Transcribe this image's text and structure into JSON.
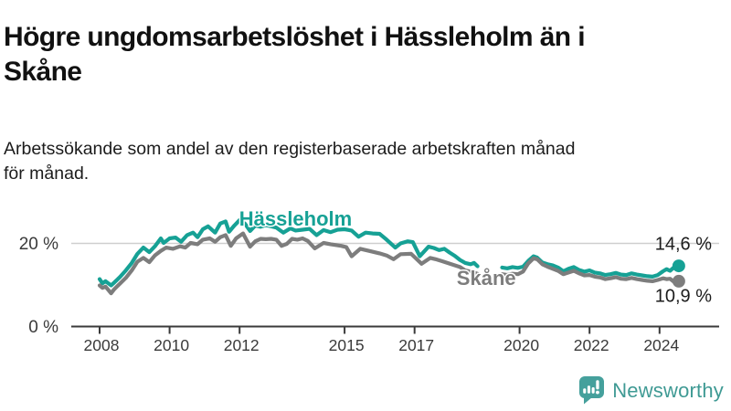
{
  "header": {
    "title": "Högre ungdomsarbetslöshet i Hässleholm än i\nSkåne",
    "subtitle": "Arbetssökande som andel av den registerbaserade arbetskraften månad\nför månad."
  },
  "footer": {
    "brand": "Newsworthy",
    "brand_color": "#3f9a94",
    "icon": "newsworthy-bubble-chart-icon",
    "icon_color": "#45a09c"
  },
  "chart_data": {
    "type": "line",
    "x_unit": "year",
    "y_unit": "percent",
    "xlim": [
      2007.6,
      2025.3
    ],
    "ylim": [
      0,
      30
    ],
    "grid": "horizontal line at 20 % only",
    "x_ticks": [
      {
        "year": 2008,
        "label": "2008"
      },
      {
        "year": 2010,
        "label": "2010"
      },
      {
        "year": 2012,
        "label": "2012"
      },
      {
        "year": 2015,
        "label": "2015"
      },
      {
        "year": 2017,
        "label": "2017"
      },
      {
        "year": 2020,
        "label": "2020"
      },
      {
        "year": 2022,
        "label": "2022"
      },
      {
        "year": 2024,
        "label": "2024"
      }
    ],
    "y_ticks": [
      {
        "value": 0,
        "label": "0 %"
      },
      {
        "value": 20,
        "label": "20 %"
      }
    ],
    "colors": {
      "axis": "#3a3a3a",
      "grid": "#cfcfcf",
      "annotation": "#1c1c1c"
    },
    "series": [
      {
        "name": "Hässleholm",
        "color": "#16a195",
        "label_at": [
          2013.6,
          24.3
        ],
        "end_value": 14.6,
        "end_label": "14,6 %",
        "end_label_dy": -17.5,
        "segments": [
          [
            [
              2008.0,
              11.4
            ],
            [
              2008.08,
              10.4
            ],
            [
              2008.17,
              10.9
            ],
            [
              2008.33,
              9.9
            ],
            [
              2008.42,
              10.6
            ],
            [
              2008.58,
              11.9
            ],
            [
              2008.75,
              13.5
            ],
            [
              2008.92,
              15.3
            ],
            [
              2009.08,
              17.5
            ],
            [
              2009.25,
              19.0
            ],
            [
              2009.42,
              17.9
            ],
            [
              2009.58,
              19.3
            ],
            [
              2009.75,
              21.2
            ],
            [
              2009.83,
              20.1
            ],
            [
              2010.0,
              21.2
            ],
            [
              2010.17,
              21.4
            ],
            [
              2010.33,
              20.4
            ],
            [
              2010.5,
              22.0
            ],
            [
              2010.67,
              22.6
            ],
            [
              2010.8,
              21.5
            ],
            [
              2010.95,
              23.4
            ],
            [
              2011.1,
              24.1
            ],
            [
              2011.3,
              22.6
            ],
            [
              2011.45,
              24.8
            ],
            [
              2011.6,
              25.3
            ],
            [
              2011.7,
              22.8
            ],
            [
              2011.85,
              24.3
            ],
            [
              2012.0,
              25.6
            ],
            [
              2012.15,
              24.8
            ],
            [
              2012.3,
              23.0
            ],
            [
              2012.45,
              24.3
            ],
            [
              2012.6,
              24.0
            ],
            [
              2012.75,
              24.4
            ],
            [
              2012.9,
              24.1
            ],
            [
              2013.05,
              23.8
            ],
            [
              2013.25,
              22.6
            ],
            [
              2013.45,
              23.6
            ],
            [
              2013.6,
              23.1
            ],
            [
              2013.8,
              23.3
            ],
            [
              2014.0,
              23.5
            ],
            [
              2014.2,
              22.0
            ],
            [
              2014.4,
              23.2
            ],
            [
              2014.6,
              22.7
            ],
            [
              2014.8,
              23.3
            ],
            [
              2015.0,
              23.4
            ],
            [
              2015.2,
              23.1
            ],
            [
              2015.4,
              21.6
            ],
            [
              2015.6,
              22.6
            ],
            [
              2015.8,
              22.4
            ],
            [
              2016.0,
              22.3
            ],
            [
              2016.2,
              20.9
            ],
            [
              2016.45,
              19.0
            ],
            [
              2016.6,
              20.0
            ],
            [
              2016.8,
              20.5
            ],
            [
              2016.95,
              20.3
            ],
            [
              2017.15,
              16.9
            ],
            [
              2017.4,
              19.2
            ],
            [
              2017.55,
              18.9
            ],
            [
              2017.7,
              18.4
            ],
            [
              2017.85,
              18.7
            ],
            [
              2018.0,
              17.8
            ],
            [
              2018.15,
              17.0
            ],
            [
              2018.3,
              16.0
            ],
            [
              2018.45,
              15.3
            ],
            [
              2018.6,
              15.0
            ],
            [
              2018.7,
              15.3
            ],
            [
              2018.8,
              14.5
            ]
          ],
          [
            [
              2019.5,
              14.2
            ],
            [
              2019.65,
              14.0
            ],
            [
              2019.8,
              14.3
            ],
            [
              2019.95,
              14.1
            ],
            [
              2020.1,
              14.4
            ],
            [
              2020.25,
              15.8
            ],
            [
              2020.4,
              16.9
            ],
            [
              2020.5,
              16.6
            ],
            [
              2020.65,
              15.4
            ],
            [
              2020.8,
              15.0
            ],
            [
              2020.95,
              14.7
            ],
            [
              2021.1,
              14.2
            ],
            [
              2021.25,
              13.3
            ],
            [
              2021.4,
              13.9
            ],
            [
              2021.55,
              14.3
            ],
            [
              2021.7,
              13.6
            ],
            [
              2021.85,
              13.2
            ],
            [
              2022.0,
              13.5
            ],
            [
              2022.15,
              13.0
            ],
            [
              2022.3,
              12.8
            ],
            [
              2022.45,
              12.4
            ],
            [
              2022.6,
              12.6
            ],
            [
              2022.75,
              12.9
            ],
            [
              2022.9,
              12.5
            ],
            [
              2023.05,
              12.4
            ],
            [
              2023.2,
              12.8
            ],
            [
              2023.35,
              12.5
            ],
            [
              2023.5,
              12.3
            ],
            [
              2023.65,
              12.1
            ],
            [
              2023.8,
              12.0
            ],
            [
              2023.95,
              12.4
            ],
            [
              2024.1,
              13.3
            ],
            [
              2024.2,
              13.8
            ],
            [
              2024.3,
              13.4
            ],
            [
              2024.42,
              14.3
            ],
            [
              2024.5,
              13.9
            ],
            [
              2024.55,
              14.6
            ]
          ]
        ]
      },
      {
        "name": "Skåne",
        "color": "#7d7d7d",
        "label_at": [
          2019.05,
          10.0
        ],
        "end_value": 10.9,
        "end_label": "10,9 %",
        "end_label_dy": 22.5,
        "segments": [
          [
            [
              2008.0,
              9.9
            ],
            [
              2008.08,
              9.3
            ],
            [
              2008.17,
              9.6
            ],
            [
              2008.33,
              8.0
            ],
            [
              2008.42,
              9.0
            ],
            [
              2008.58,
              10.3
            ],
            [
              2008.75,
              11.7
            ],
            [
              2008.92,
              13.5
            ],
            [
              2009.08,
              15.6
            ],
            [
              2009.25,
              16.5
            ],
            [
              2009.42,
              15.5
            ],
            [
              2009.58,
              17.1
            ],
            [
              2009.75,
              18.2
            ],
            [
              2009.9,
              19.0
            ],
            [
              2010.1,
              18.7
            ],
            [
              2010.3,
              19.3
            ],
            [
              2010.45,
              19.0
            ],
            [
              2010.6,
              20.1
            ],
            [
              2010.8,
              19.8
            ],
            [
              2010.95,
              20.9
            ],
            [
              2011.15,
              21.2
            ],
            [
              2011.3,
              20.4
            ],
            [
              2011.45,
              21.5
            ],
            [
              2011.6,
              22.0
            ],
            [
              2011.75,
              19.4
            ],
            [
              2011.9,
              21.2
            ],
            [
              2012.1,
              22.4
            ],
            [
              2012.3,
              19.2
            ],
            [
              2012.45,
              20.5
            ],
            [
              2012.6,
              21.1
            ],
            [
              2012.75,
              21.0
            ],
            [
              2012.9,
              21.1
            ],
            [
              2013.05,
              20.9
            ],
            [
              2013.2,
              19.4
            ],
            [
              2013.35,
              19.9
            ],
            [
              2013.5,
              21.1
            ],
            [
              2013.65,
              20.9
            ],
            [
              2013.8,
              21.2
            ],
            [
              2013.95,
              20.6
            ],
            [
              2014.15,
              18.8
            ],
            [
              2014.4,
              20.1
            ],
            [
              2014.6,
              19.8
            ],
            [
              2014.9,
              19.4
            ],
            [
              2015.05,
              19.1
            ],
            [
              2015.2,
              16.9
            ],
            [
              2015.45,
              18.7
            ],
            [
              2015.7,
              18.2
            ],
            [
              2016.0,
              17.6
            ],
            [
              2016.2,
              17.1
            ],
            [
              2016.4,
              16.2
            ],
            [
              2016.6,
              17.4
            ],
            [
              2016.9,
              17.5
            ],
            [
              2017.2,
              15.1
            ],
            [
              2017.45,
              16.5
            ],
            [
              2017.6,
              16.2
            ],
            [
              2017.8,
              15.7
            ],
            [
              2018.05,
              15.0
            ],
            [
              2018.3,
              14.3
            ],
            [
              2018.45,
              13.5
            ],
            [
              2018.6,
              13.2
            ],
            [
              2018.8,
              12.7
            ]
          ],
          [
            [
              2019.5,
              12.6
            ],
            [
              2019.65,
              12.4
            ],
            [
              2019.8,
              12.7
            ],
            [
              2019.95,
              12.6
            ],
            [
              2020.1,
              13.2
            ],
            [
              2020.25,
              15.2
            ],
            [
              2020.4,
              16.4
            ],
            [
              2020.5,
              16.2
            ],
            [
              2020.65,
              15.0
            ],
            [
              2020.8,
              14.4
            ],
            [
              2020.95,
              13.9
            ],
            [
              2021.1,
              13.4
            ],
            [
              2021.25,
              12.6
            ],
            [
              2021.4,
              13.0
            ],
            [
              2021.55,
              13.4
            ],
            [
              2021.7,
              12.8
            ],
            [
              2021.85,
              12.3
            ],
            [
              2022.0,
              12.4
            ],
            [
              2022.15,
              12.0
            ],
            [
              2022.3,
              11.8
            ],
            [
              2022.45,
              11.4
            ],
            [
              2022.6,
              11.6
            ],
            [
              2022.75,
              11.9
            ],
            [
              2022.9,
              11.5
            ],
            [
              2023.05,
              11.4
            ],
            [
              2023.2,
              11.7
            ],
            [
              2023.35,
              11.4
            ],
            [
              2023.5,
              11.2
            ],
            [
              2023.65,
              11.0
            ],
            [
              2023.8,
              10.9
            ],
            [
              2023.95,
              11.2
            ],
            [
              2024.1,
              11.6
            ],
            [
              2024.2,
              11.4
            ],
            [
              2024.3,
              11.5
            ],
            [
              2024.42,
              10.7
            ],
            [
              2024.5,
              10.6
            ],
            [
              2024.55,
              10.9
            ]
          ]
        ]
      }
    ]
  }
}
